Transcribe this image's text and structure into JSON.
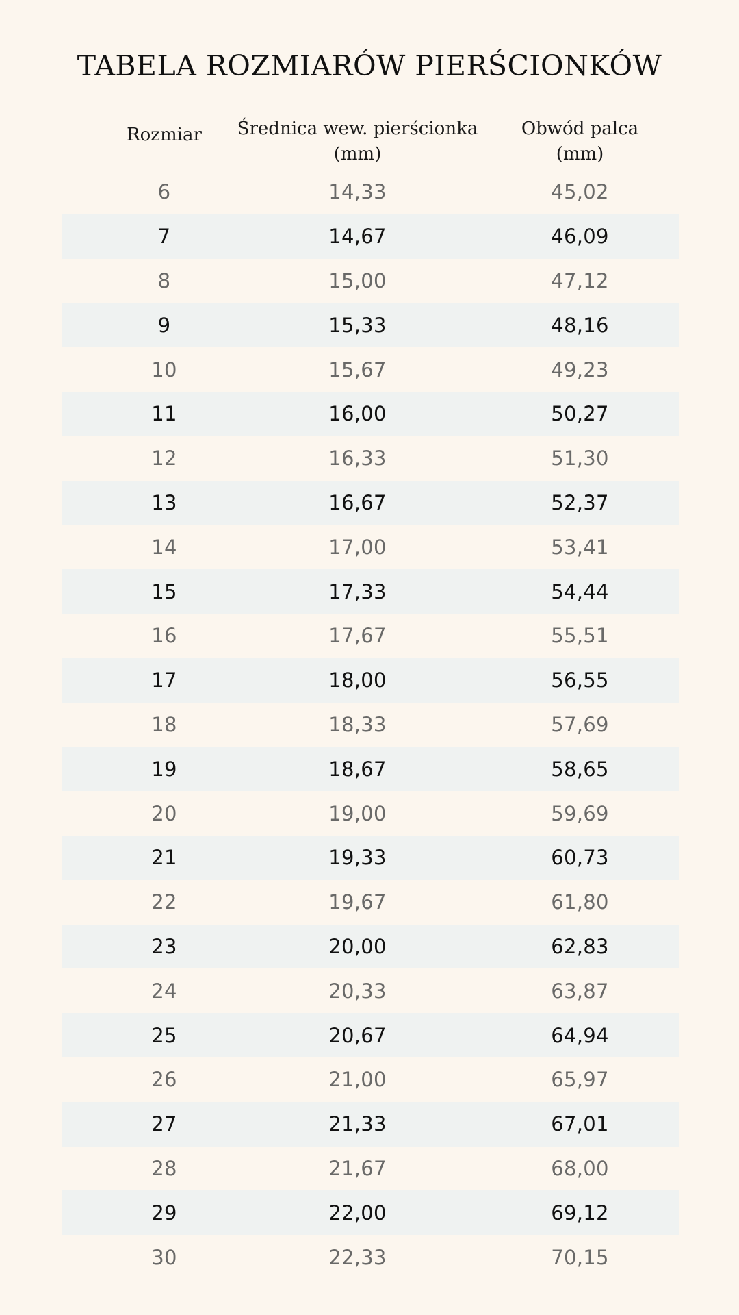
{
  "title": "TABELA ROZMIARÓW PIERŚCIONKÓW",
  "headers": {
    "size": "Rozmiar",
    "diameter_line1": "Średnica wew. pierścionka",
    "diameter_line2": "(mm)",
    "circumference_line1": "Obwód palca",
    "circumference_line2": "(mm)"
  },
  "rows": [
    {
      "size": "6",
      "diameter": "14,33",
      "circumference": "45,02"
    },
    {
      "size": "7",
      "diameter": "14,67",
      "circumference": "46,09"
    },
    {
      "size": "8",
      "diameter": "15,00",
      "circumference": "47,12"
    },
    {
      "size": "9",
      "diameter": "15,33",
      "circumference": "48,16"
    },
    {
      "size": "10",
      "diameter": "15,67",
      "circumference": "49,23"
    },
    {
      "size": "11",
      "diameter": "16,00",
      "circumference": "50,27"
    },
    {
      "size": "12",
      "diameter": "16,33",
      "circumference": "51,30"
    },
    {
      "size": "13",
      "diameter": "16,67",
      "circumference": "52,37"
    },
    {
      "size": "14",
      "diameter": "17,00",
      "circumference": "53,41"
    },
    {
      "size": "15",
      "diameter": "17,33",
      "circumference": "54,44"
    },
    {
      "size": "16",
      "diameter": "17,67",
      "circumference": "55,51"
    },
    {
      "size": "17",
      "diameter": "18,00",
      "circumference": "56,55"
    },
    {
      "size": "18",
      "diameter": "18,33",
      "circumference": "57,69"
    },
    {
      "size": "19",
      "diameter": "18,67",
      "circumference": "58,65"
    },
    {
      "size": "20",
      "diameter": "19,00",
      "circumference": "59,69"
    },
    {
      "size": "21",
      "diameter": "19,33",
      "circumference": "60,73"
    },
    {
      "size": "22",
      "diameter": "19,67",
      "circumference": "61,80"
    },
    {
      "size": "23",
      "diameter": "20,00",
      "circumference": "62,83"
    },
    {
      "size": "24",
      "diameter": "20,33",
      "circumference": "63,87"
    },
    {
      "size": "25",
      "diameter": "20,67",
      "circumference": "64,94"
    },
    {
      "size": "26",
      "diameter": "21,00",
      "circumference": "65,97"
    },
    {
      "size": "27",
      "diameter": "21,33",
      "circumference": "67,01"
    },
    {
      "size": "28",
      "diameter": "21,67",
      "circumference": "68,00"
    },
    {
      "size": "29",
      "diameter": "22,00",
      "circumference": "69,12"
    },
    {
      "size": "30",
      "diameter": "22,33",
      "circumference": "70,15"
    }
  ],
  "colors": {
    "background": "#fcf6ee",
    "stripe": "#eff2f1"
  }
}
